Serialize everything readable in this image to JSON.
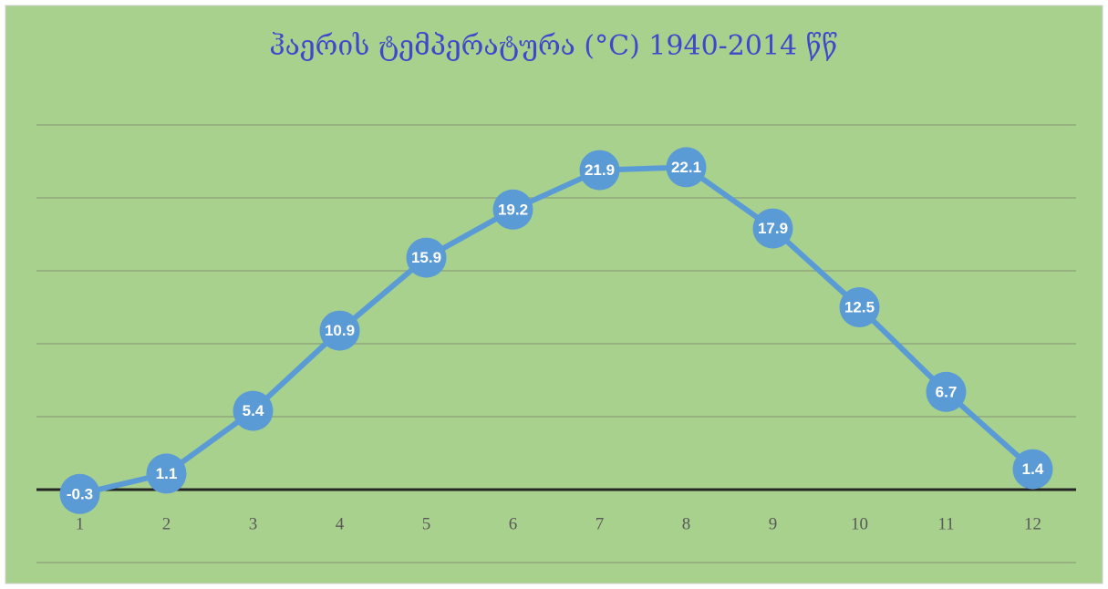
{
  "chart_data": {
    "type": "line",
    "title": "ჰაერის ტემპერატურა (°C) 1940-2014 წწ",
    "categories": [
      "1",
      "2",
      "3",
      "4",
      "5",
      "6",
      "7",
      "8",
      "9",
      "10",
      "11",
      "12"
    ],
    "series": [
      {
        "name": "ჰაერის ტემპერატურა",
        "color": "#5b9bd5",
        "values": [
          -0.3,
          1.1,
          5.4,
          10.9,
          15.9,
          19.2,
          21.9,
          22.1,
          17.9,
          12.5,
          6.7,
          1.4
        ]
      }
    ],
    "ylim": [
      -5,
      25
    ],
    "yticks": [
      -5,
      0,
      5,
      10,
      15,
      20,
      25
    ],
    "grid": true
  }
}
